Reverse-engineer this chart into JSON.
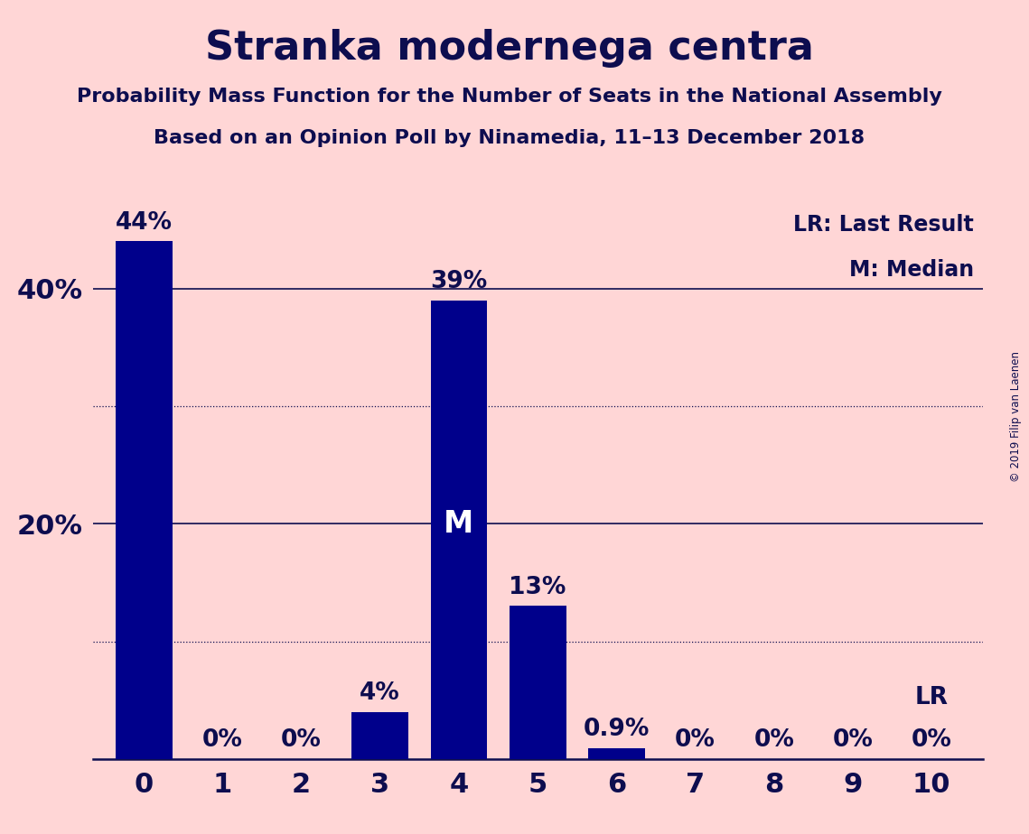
{
  "title": "Stranka modernega centra",
  "subtitle1": "Probability Mass Function for the Number of Seats in the National Assembly",
  "subtitle2": "Based on an Opinion Poll by Ninamedia, 11–13 December 2018",
  "copyright": "© 2019 Filip van Laenen",
  "categories": [
    0,
    1,
    2,
    3,
    4,
    5,
    6,
    7,
    8,
    9,
    10
  ],
  "values": [
    0.44,
    0.0,
    0.0,
    0.04,
    0.39,
    0.13,
    0.009,
    0.0,
    0.0,
    0.0,
    0.0
  ],
  "labels": [
    "44%",
    "0%",
    "0%",
    "4%",
    "39%",
    "13%",
    "0.9%",
    "0%",
    "0%",
    "0%",
    "0%"
  ],
  "bar_color": "#00008B",
  "background_color": "#FFD6D6",
  "text_color": "#0D0D4F",
  "yticks": [
    0.0,
    0.2,
    0.4
  ],
  "ylim": [
    0,
    0.475
  ],
  "median_bar": 4,
  "median_label": "M",
  "lr_bar": 10,
  "lr_label": "LR",
  "solid_grid": [
    0.2,
    0.4
  ],
  "dotted_grid": [
    0.1,
    0.3
  ],
  "legend_lr": "LR: Last Result",
  "legend_m": "M: Median"
}
